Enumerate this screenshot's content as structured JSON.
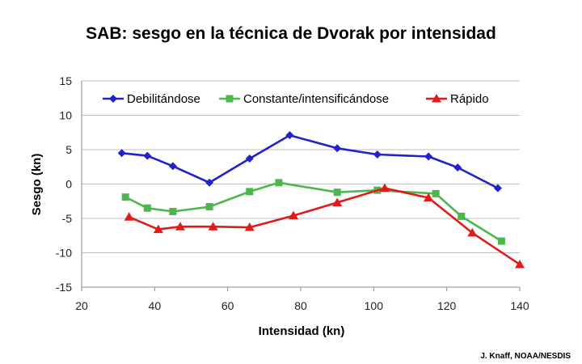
{
  "credit": "J. Knaff, NOAA/NESDIS",
  "chart_data": {
    "type": "line",
    "title": "SAB: sesgo en la técnica de Dvorak por intensidad",
    "xlabel": "Intensidad (kn)",
    "ylabel": "Sesgo (kn)",
    "xlim": [
      20,
      140
    ],
    "ylim": [
      -15,
      15
    ],
    "xticks": [
      20,
      40,
      60,
      80,
      100,
      120,
      140
    ],
    "yticks": [
      -15,
      -10,
      -5,
      0,
      5,
      10,
      15
    ],
    "grid": "horizontal",
    "legend_position": "top",
    "series": [
      {
        "name": "Debilitándose",
        "color": "#2222cc",
        "marker": "diamond",
        "points": [
          [
            31,
            4.5
          ],
          [
            38,
            4.1
          ],
          [
            45,
            2.6
          ],
          [
            55,
            0.2
          ],
          [
            66,
            3.7
          ],
          [
            77,
            7.1
          ],
          [
            90,
            5.2
          ],
          [
            101,
            4.3
          ],
          [
            115,
            4.0
          ],
          [
            123,
            2.4
          ],
          [
            134,
            -0.6
          ]
        ]
      },
      {
        "name": "Constante/intensificándose",
        "color": "#4cb84c",
        "marker": "square",
        "points": [
          [
            32,
            -1.9
          ],
          [
            38,
            -3.5
          ],
          [
            45,
            -4.0
          ],
          [
            55,
            -3.3
          ],
          [
            66,
            -1.1
          ],
          [
            74,
            0.2
          ],
          [
            90,
            -1.2
          ],
          [
            101,
            -0.9
          ],
          [
            117,
            -1.4
          ],
          [
            124,
            -4.7
          ],
          [
            135,
            -8.3
          ]
        ]
      },
      {
        "name": "Rápido",
        "color": "#e11a1a",
        "marker": "triangle",
        "points": [
          [
            33,
            -4.8
          ],
          [
            41,
            -6.6
          ],
          [
            47,
            -6.2
          ],
          [
            56,
            -6.2
          ],
          [
            66,
            -6.3
          ],
          [
            78,
            -4.6
          ],
          [
            90,
            -2.7
          ],
          [
            103,
            -0.6
          ],
          [
            115,
            -2.0
          ],
          [
            127,
            -7.1
          ],
          [
            140,
            -11.7
          ]
        ]
      }
    ]
  }
}
